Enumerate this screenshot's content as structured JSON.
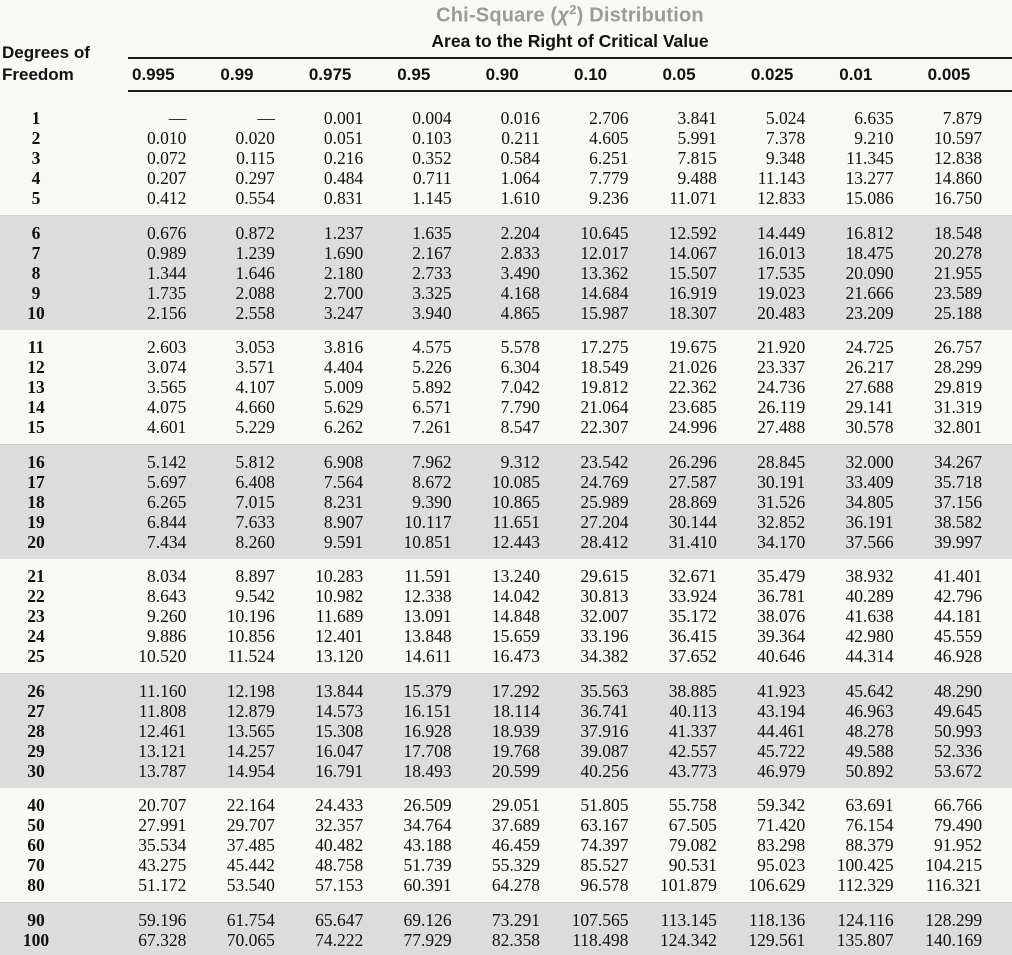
{
  "page": {
    "background": "#f8f8f5",
    "band_color": "#dcdcdc",
    "text_color": "#111111",
    "title_color": "#9b9b9b"
  },
  "header": {
    "title_pre": "Chi-Square (",
    "title_chi": "χ",
    "title_sup": "2",
    "title_post": ") Distribution",
    "subtitle": "Area to the Right of Critical Value",
    "row_label_line1": "Degrees of",
    "row_label_line2": "Freedom",
    "columns": [
      "0.995",
      "0.99",
      "0.975",
      "0.95",
      "0.90",
      "0.10",
      "0.05",
      "0.025",
      "0.01",
      "0.005"
    ]
  },
  "table": {
    "groups": [
      {
        "shaded": false,
        "rows": [
          {
            "df": "1",
            "values": [
              "—",
              "—",
              "0.001",
              "0.004",
              "0.016",
              "2.706",
              "3.841",
              "5.024",
              "6.635",
              "7.879"
            ]
          },
          {
            "df": "2",
            "values": [
              "0.010",
              "0.020",
              "0.051",
              "0.103",
              "0.211",
              "4.605",
              "5.991",
              "7.378",
              "9.210",
              "10.597"
            ]
          },
          {
            "df": "3",
            "values": [
              "0.072",
              "0.115",
              "0.216",
              "0.352",
              "0.584",
              "6.251",
              "7.815",
              "9.348",
              "11.345",
              "12.838"
            ]
          },
          {
            "df": "4",
            "values": [
              "0.207",
              "0.297",
              "0.484",
              "0.711",
              "1.064",
              "7.779",
              "9.488",
              "11.143",
              "13.277",
              "14.860"
            ]
          },
          {
            "df": "5",
            "values": [
              "0.412",
              "0.554",
              "0.831",
              "1.145",
              "1.610",
              "9.236",
              "11.071",
              "12.833",
              "15.086",
              "16.750"
            ]
          }
        ]
      },
      {
        "shaded": true,
        "rows": [
          {
            "df": "6",
            "values": [
              "0.676",
              "0.872",
              "1.237",
              "1.635",
              "2.204",
              "10.645",
              "12.592",
              "14.449",
              "16.812",
              "18.548"
            ]
          },
          {
            "df": "7",
            "values": [
              "0.989",
              "1.239",
              "1.690",
              "2.167",
              "2.833",
              "12.017",
              "14.067",
              "16.013",
              "18.475",
              "20.278"
            ]
          },
          {
            "df": "8",
            "values": [
              "1.344",
              "1.646",
              "2.180",
              "2.733",
              "3.490",
              "13.362",
              "15.507",
              "17.535",
              "20.090",
              "21.955"
            ]
          },
          {
            "df": "9",
            "values": [
              "1.735",
              "2.088",
              "2.700",
              "3.325",
              "4.168",
              "14.684",
              "16.919",
              "19.023",
              "21.666",
              "23.589"
            ]
          },
          {
            "df": "10",
            "values": [
              "2.156",
              "2.558",
              "3.247",
              "3.940",
              "4.865",
              "15.987",
              "18.307",
              "20.483",
              "23.209",
              "25.188"
            ]
          }
        ]
      },
      {
        "shaded": false,
        "rows": [
          {
            "df": "11",
            "values": [
              "2.603",
              "3.053",
              "3.816",
              "4.575",
              "5.578",
              "17.275",
              "19.675",
              "21.920",
              "24.725",
              "26.757"
            ]
          },
          {
            "df": "12",
            "values": [
              "3.074",
              "3.571",
              "4.404",
              "5.226",
              "6.304",
              "18.549",
              "21.026",
              "23.337",
              "26.217",
              "28.299"
            ]
          },
          {
            "df": "13",
            "values": [
              "3.565",
              "4.107",
              "5.009",
              "5.892",
              "7.042",
              "19.812",
              "22.362",
              "24.736",
              "27.688",
              "29.819"
            ]
          },
          {
            "df": "14",
            "values": [
              "4.075",
              "4.660",
              "5.629",
              "6.571",
              "7.790",
              "21.064",
              "23.685",
              "26.119",
              "29.141",
              "31.319"
            ]
          },
          {
            "df": "15",
            "values": [
              "4.601",
              "5.229",
              "6.262",
              "7.261",
              "8.547",
              "22.307",
              "24.996",
              "27.488",
              "30.578",
              "32.801"
            ]
          }
        ]
      },
      {
        "shaded": true,
        "rows": [
          {
            "df": "16",
            "values": [
              "5.142",
              "5.812",
              "6.908",
              "7.962",
              "9.312",
              "23.542",
              "26.296",
              "28.845",
              "32.000",
              "34.267"
            ]
          },
          {
            "df": "17",
            "values": [
              "5.697",
              "6.408",
              "7.564",
              "8.672",
              "10.085",
              "24.769",
              "27.587",
              "30.191",
              "33.409",
              "35.718"
            ]
          },
          {
            "df": "18",
            "values": [
              "6.265",
              "7.015",
              "8.231",
              "9.390",
              "10.865",
              "25.989",
              "28.869",
              "31.526",
              "34.805",
              "37.156"
            ]
          },
          {
            "df": "19",
            "values": [
              "6.844",
              "7.633",
              "8.907",
              "10.117",
              "11.651",
              "27.204",
              "30.144",
              "32.852",
              "36.191",
              "38.582"
            ]
          },
          {
            "df": "20",
            "values": [
              "7.434",
              "8.260",
              "9.591",
              "10.851",
              "12.443",
              "28.412",
              "31.410",
              "34.170",
              "37.566",
              "39.997"
            ]
          }
        ]
      },
      {
        "shaded": false,
        "rows": [
          {
            "df": "21",
            "values": [
              "8.034",
              "8.897",
              "10.283",
              "11.591",
              "13.240",
              "29.615",
              "32.671",
              "35.479",
              "38.932",
              "41.401"
            ]
          },
          {
            "df": "22",
            "values": [
              "8.643",
              "9.542",
              "10.982",
              "12.338",
              "14.042",
              "30.813",
              "33.924",
              "36.781",
              "40.289",
              "42.796"
            ]
          },
          {
            "df": "23",
            "values": [
              "9.260",
              "10.196",
              "11.689",
              "13.091",
              "14.848",
              "32.007",
              "35.172",
              "38.076",
              "41.638",
              "44.181"
            ]
          },
          {
            "df": "24",
            "values": [
              "9.886",
              "10.856",
              "12.401",
              "13.848",
              "15.659",
              "33.196",
              "36.415",
              "39.364",
              "42.980",
              "45.559"
            ]
          },
          {
            "df": "25",
            "values": [
              "10.520",
              "11.524",
              "13.120",
              "14.611",
              "16.473",
              "34.382",
              "37.652",
              "40.646",
              "44.314",
              "46.928"
            ]
          }
        ]
      },
      {
        "shaded": true,
        "rows": [
          {
            "df": "26",
            "values": [
              "11.160",
              "12.198",
              "13.844",
              "15.379",
              "17.292",
              "35.563",
              "38.885",
              "41.923",
              "45.642",
              "48.290"
            ]
          },
          {
            "df": "27",
            "values": [
              "11.808",
              "12.879",
              "14.573",
              "16.151",
              "18.114",
              "36.741",
              "40.113",
              "43.194",
              "46.963",
              "49.645"
            ]
          },
          {
            "df": "28",
            "values": [
              "12.461",
              "13.565",
              "15.308",
              "16.928",
              "18.939",
              "37.916",
              "41.337",
              "44.461",
              "48.278",
              "50.993"
            ]
          },
          {
            "df": "29",
            "values": [
              "13.121",
              "14.257",
              "16.047",
              "17.708",
              "19.768",
              "39.087",
              "42.557",
              "45.722",
              "49.588",
              "52.336"
            ]
          },
          {
            "df": "30",
            "values": [
              "13.787",
              "14.954",
              "16.791",
              "18.493",
              "20.599",
              "40.256",
              "43.773",
              "46.979",
              "50.892",
              "53.672"
            ]
          }
        ]
      },
      {
        "shaded": false,
        "rows": [
          {
            "df": "40",
            "values": [
              "20.707",
              "22.164",
              "24.433",
              "26.509",
              "29.051",
              "51.805",
              "55.758",
              "59.342",
              "63.691",
              "66.766"
            ]
          },
          {
            "df": "50",
            "values": [
              "27.991",
              "29.707",
              "32.357",
              "34.764",
              "37.689",
              "63.167",
              "67.505",
              "71.420",
              "76.154",
              "79.490"
            ]
          },
          {
            "df": "60",
            "values": [
              "35.534",
              "37.485",
              "40.482",
              "43.188",
              "46.459",
              "74.397",
              "79.082",
              "83.298",
              "88.379",
              "91.952"
            ]
          },
          {
            "df": "70",
            "values": [
              "43.275",
              "45.442",
              "48.758",
              "51.739",
              "55.329",
              "85.527",
              "90.531",
              "95.023",
              "100.425",
              "104.215"
            ]
          },
          {
            "df": "80",
            "values": [
              "51.172",
              "53.540",
              "57.153",
              "60.391",
              "64.278",
              "96.578",
              "101.879",
              "106.629",
              "112.329",
              "116.321"
            ]
          }
        ]
      },
      {
        "shaded": true,
        "rows": [
          {
            "df": "90",
            "values": [
              "59.196",
              "61.754",
              "65.647",
              "69.126",
              "73.291",
              "107.565",
              "113.145",
              "118.136",
              "124.116",
              "128.299"
            ]
          },
          {
            "df": "100",
            "values": [
              "67.328",
              "70.065",
              "74.222",
              "77.929",
              "82.358",
              "118.498",
              "124.342",
              "129.561",
              "135.807",
              "140.169"
            ]
          }
        ]
      }
    ]
  }
}
